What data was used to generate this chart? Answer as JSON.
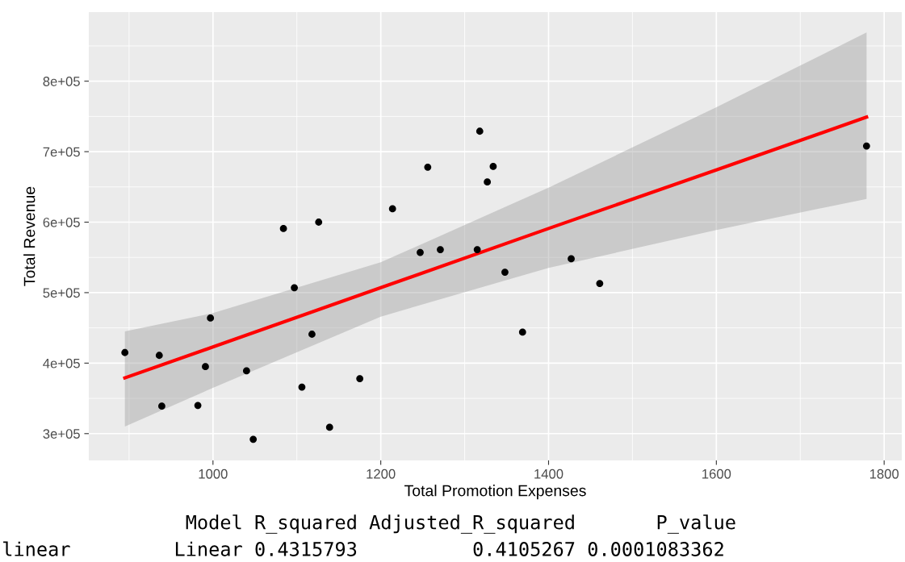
{
  "chart_data": {
    "type": "scatter",
    "xlabel": "Total Promotion Expenses",
    "ylabel": "Total Revenue",
    "x": [
      895,
      936,
      939,
      982,
      991,
      997,
      1040,
      1048,
      1084,
      1097,
      1106,
      1118,
      1126,
      1139,
      1175,
      1214,
      1247,
      1256,
      1271,
      1315,
      1318,
      1327,
      1334,
      1348,
      1369,
      1427,
      1461,
      1779
    ],
    "series": [
      {
        "color": "#000000",
        "marker": "circle",
        "values": [
          415000,
          411000,
          339000,
          340000,
          395000,
          464000,
          389000,
          292000,
          591000,
          507000,
          366000,
          441000,
          600000,
          309000,
          378000,
          619000,
          557000,
          678000,
          561000,
          561000,
          729000,
          657000,
          679000,
          529000,
          444000,
          548000,
          513000,
          708000
        ]
      },
      {
        "type": "line",
        "color": "#ff0000",
        "x": [
          895,
          1000,
          1200,
          1400,
          1600,
          1779
        ],
        "values": [
          379000,
          423000,
          507000,
          591000,
          674000,
          749000
        ],
        "lower": [
          310000,
          365000,
          466000,
          535000,
          589000,
          633000
        ],
        "upper": [
          445000,
          471000,
          543000,
          649000,
          763000,
          869000
        ]
      }
    ],
    "xlim": [
      852,
      1821
    ],
    "ylim": [
      262000,
      898000
    ],
    "xticks": [
      1000,
      1200,
      1400,
      1600,
      1800
    ],
    "yticks": [
      {
        "value": 300000,
        "label": "3e+05"
      },
      {
        "value": 400000,
        "label": "4e+05"
      },
      {
        "value": 500000,
        "label": "5e+05"
      },
      {
        "value": 600000,
        "label": "6e+05"
      },
      {
        "value": 700000,
        "label": "7e+05"
      },
      {
        "value": 800000,
        "label": "8e+05"
      }
    ],
    "grid": true,
    "annotations": [
      "                Model R_squared Adjusted_R_squared       P_value",
      "linear         Linear 0.4315793          0.4105267 0.0001083362"
    ]
  }
}
